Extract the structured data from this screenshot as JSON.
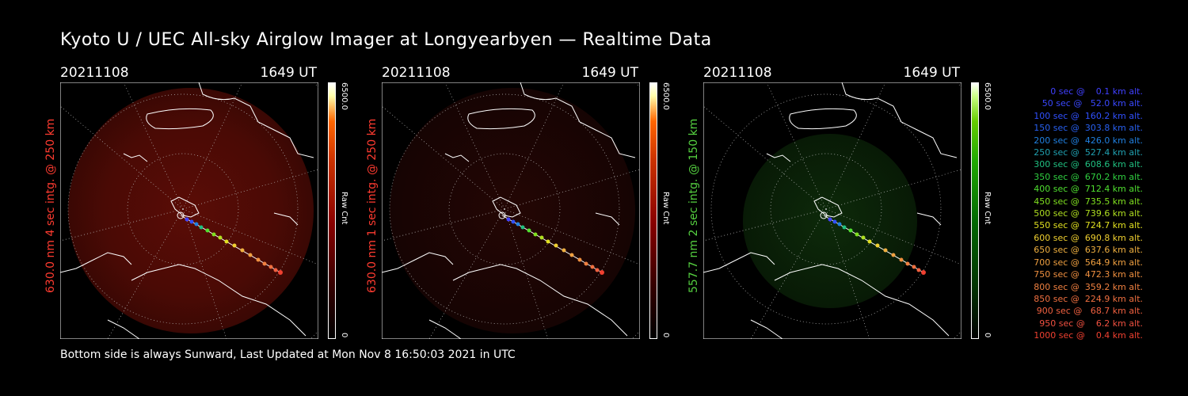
{
  "title": "Kyoto U / UEC All-sky Airglow Imager at Longyearbyen — Realtime Data",
  "footer": "Bottom side is always Sunward, Last Updated at Mon Nov  8 16:50:03 2021 in UTC",
  "panels": [
    {
      "date": "20211108",
      "time": "1649 UT",
      "label": "630.0 nm 4 sec intg. @ 250 km",
      "label_color": "#ff3b30",
      "cbar_max": "6500.0",
      "cbar_min": "0",
      "cbar_unit": "Raw Cnt",
      "accent": "#ff3020"
    },
    {
      "date": "20211108",
      "time": "1649 UT",
      "label": "630.0 nm 1 sec intg. @ 250 km",
      "label_color": "#ff3b30",
      "cbar_max": "6500.0",
      "cbar_min": "0",
      "cbar_unit": "Raw Cnt",
      "accent": "#ff3020"
    },
    {
      "date": "20211108",
      "time": "1649 UT",
      "label": "557.7 nm 2 sec intg. @ 150 km",
      "label_color": "#55d040",
      "cbar_max": "6500.0",
      "cbar_min": "0",
      "cbar_unit": "Raw Cnt",
      "accent": "#40c020"
    }
  ],
  "legend": [
    {
      "text": "   0 sec @    0.1 km alt.",
      "color": "#4040ff"
    },
    {
      "text": "  50 sec @   52.0 km alt.",
      "color": "#3a48ff"
    },
    {
      "text": " 100 sec @  160.2 km alt.",
      "color": "#3050ff"
    },
    {
      "text": " 150 sec @  303.8 km alt.",
      "color": "#2860f0"
    },
    {
      "text": " 200 sec @  426.0 km alt.",
      "color": "#2080e0"
    },
    {
      "text": " 250 sec @  527.4 km alt.",
      "color": "#20a0b0"
    },
    {
      "text": " 300 sec @  608.6 km alt.",
      "color": "#20c080"
    },
    {
      "text": " 350 sec @  670.2 km alt.",
      "color": "#30d040"
    },
    {
      "text": " 400 sec @  712.4 km alt.",
      "color": "#50e030"
    },
    {
      "text": " 450 sec @  735.5 km alt.",
      "color": "#80e020"
    },
    {
      "text": " 500 sec @  739.6 km alt.",
      "color": "#b0e020"
    },
    {
      "text": " 550 sec @  724.7 km alt.",
      "color": "#e0e020"
    },
    {
      "text": " 600 sec @  690.8 km alt.",
      "color": "#f0d030"
    },
    {
      "text": " 650 sec @  637.6 km alt.",
      "color": "#f0b040"
    },
    {
      "text": " 700 sec @  564.9 km alt.",
      "color": "#f0a040"
    },
    {
      "text": " 750 sec @  472.3 km alt.",
      "color": "#f09040"
    },
    {
      "text": " 800 sec @  359.2 km alt.",
      "color": "#f08040"
    },
    {
      "text": " 850 sec @  224.9 km alt.",
      "color": "#f07040"
    },
    {
      "text": " 900 sec @   68.7 km alt.",
      "color": "#f06040"
    },
    {
      "text": " 950 sec @    6.2 km alt.",
      "color": "#f05040"
    },
    {
      "text": "1000 sec @    0.4 km alt.",
      "color": "#f04030"
    }
  ]
}
